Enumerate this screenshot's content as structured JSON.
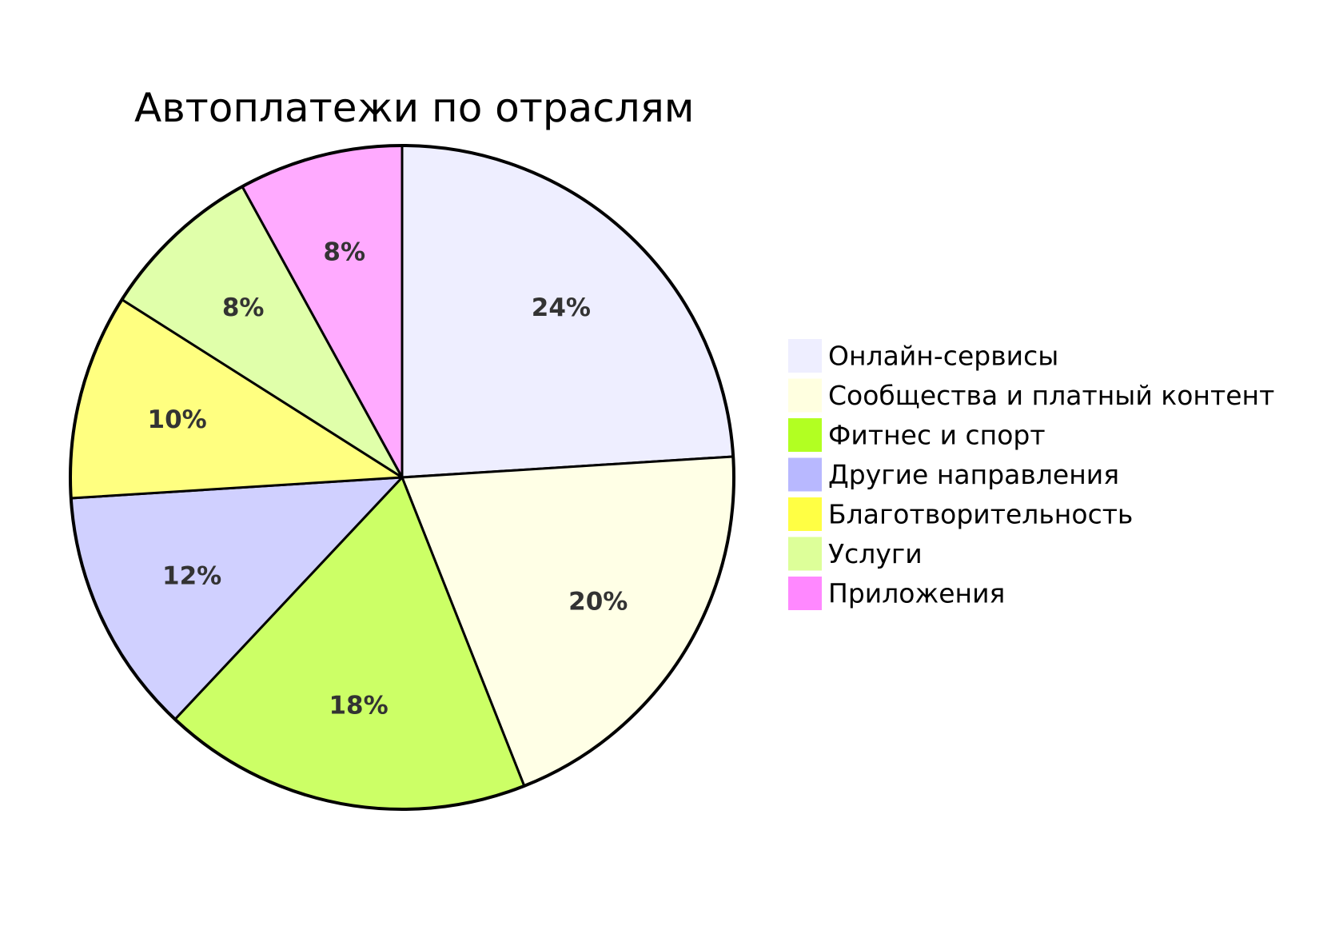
{
  "chart_data": {
    "type": "pie",
    "title": "Автоплатежи по отраслям",
    "slices": [
      {
        "label": "Онлайн-сервисы",
        "value": 24,
        "value_label": "24%",
        "color": "#EEEEFF",
        "legend_color": "#EEEEFF"
      },
      {
        "label": "Сообщества и платный контент",
        "value": 20,
        "value_label": "20%",
        "color": "#FFFFE6",
        "legend_color": "#FFFFE0"
      },
      {
        "label": "Фитнес и спорт",
        "value": 18,
        "value_label": "18%",
        "color": "#CCFF66",
        "legend_color": "#B2FF22"
      },
      {
        "label": "Другие направления",
        "value": 12,
        "value_label": "12%",
        "color": "#D0D0FF",
        "legend_color": "#B8B8FF"
      },
      {
        "label": "Благотворительность",
        "value": 10,
        "value_label": "10%",
        "color": "#FFFF80",
        "legend_color": "#FFFF44"
      },
      {
        "label": "Услуги",
        "value": 8,
        "value_label": "8%",
        "color": "#E0FFAA",
        "legend_color": "#DDFF99"
      },
      {
        "label": "Приложения",
        "value": 8,
        "value_label": "8%",
        "color": "#FFAAFF",
        "legend_color": "#FF88FF"
      }
    ],
    "legend_position": "right",
    "start_angle": "12 o'clock",
    "direction": "clockwise",
    "stroke_color": "#000000"
  }
}
